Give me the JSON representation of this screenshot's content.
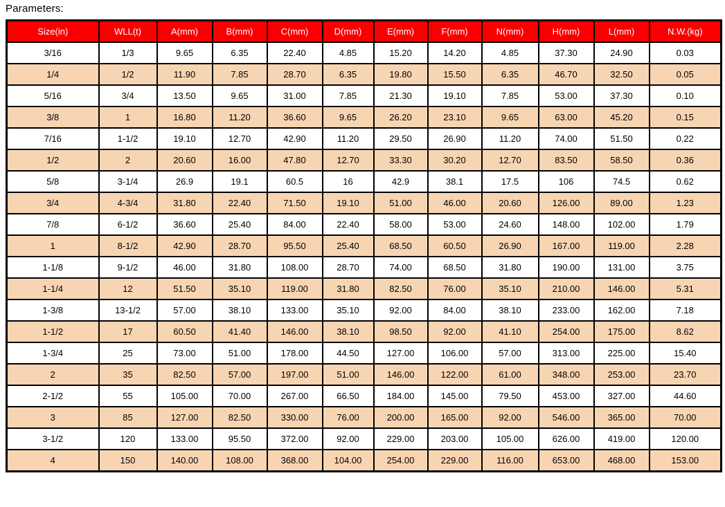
{
  "title": "Parameters:",
  "colors": {
    "header_bg": "#f80000",
    "header_text": "#ffffff",
    "stripe_bg": "#f8d5b2",
    "border": "#000000"
  },
  "table": {
    "columns": [
      "Size(in)",
      "WLL(t)",
      "A(mm)",
      "B(mm)",
      "C(mm)",
      "D(mm)",
      "E(mm)",
      "F(mm)",
      "N(mm)",
      "H(mm)",
      "L(mm)",
      "N.W.(kg)"
    ],
    "rows": [
      [
        "3/16",
        "1/3",
        "9.65",
        "6.35",
        "22.40",
        "4.85",
        "15.20",
        "14.20",
        "4.85",
        "37.30",
        "24.90",
        "0.03"
      ],
      [
        "1/4",
        "1/2",
        "11.90",
        "7.85",
        "28.70",
        "6.35",
        "19.80",
        "15.50",
        "6.35",
        "46.70",
        "32.50",
        "0.05"
      ],
      [
        "5/16",
        "3/4",
        "13.50",
        "9.65",
        "31.00",
        "7.85",
        "21.30",
        "19.10",
        "7.85",
        "53.00",
        "37.30",
        "0.10"
      ],
      [
        "3/8",
        "1",
        "16.80",
        "11.20",
        "36.60",
        "9.65",
        "26.20",
        "23.10",
        "9.65",
        "63.00",
        "45.20",
        "0.15"
      ],
      [
        "7/16",
        "1-1/2",
        "19.10",
        "12.70",
        "42.90",
        "11.20",
        "29.50",
        "26.90",
        "11.20",
        "74.00",
        "51.50",
        "0.22"
      ],
      [
        "1/2",
        "2",
        "20.60",
        "16.00",
        "47.80",
        "12.70",
        "33.30",
        "30.20",
        "12.70",
        "83.50",
        "58.50",
        "0.36"
      ],
      [
        "5/8",
        "3-1/4",
        "26.9",
        "19.1",
        "60.5",
        "16",
        "42.9",
        "38.1",
        "17.5",
        "106",
        "74.5",
        "0.62"
      ],
      [
        "3/4",
        "4-3/4",
        "31.80",
        "22.40",
        "71.50",
        "19.10",
        "51.00",
        "46.00",
        "20.60",
        "126.00",
        "89.00",
        "1.23"
      ],
      [
        "7/8",
        "6-1/2",
        "36.60",
        "25.40",
        "84.00",
        "22.40",
        "58.00",
        "53.00",
        "24.60",
        "148.00",
        "102.00",
        "1.79"
      ],
      [
        "1",
        "8-1/2",
        "42.90",
        "28.70",
        "95.50",
        "25.40",
        "68.50",
        "60.50",
        "26.90",
        "167.00",
        "119.00",
        "2.28"
      ],
      [
        "1-1/8",
        "9-1/2",
        "46.00",
        "31.80",
        "108.00",
        "28.70",
        "74.00",
        "68.50",
        "31.80",
        "190.00",
        "131.00",
        "3.75"
      ],
      [
        "1-1/4",
        "12",
        "51.50",
        "35.10",
        "119.00",
        "31.80",
        "82.50",
        "76.00",
        "35.10",
        "210.00",
        "146.00",
        "5.31"
      ],
      [
        "1-3/8",
        "13-1/2",
        "57.00",
        "38.10",
        "133.00",
        "35.10",
        "92.00",
        "84.00",
        "38.10",
        "233.00",
        "162.00",
        "7.18"
      ],
      [
        "1-1/2",
        "17",
        "60.50",
        "41.40",
        "146.00",
        "38.10",
        "98.50",
        "92.00",
        "41.10",
        "254.00",
        "175.00",
        "8.62"
      ],
      [
        "1-3/4",
        "25",
        "73.00",
        "51.00",
        "178.00",
        "44.50",
        "127.00",
        "106.00",
        "57.00",
        "313.00",
        "225.00",
        "15.40"
      ],
      [
        "2",
        "35",
        "82.50",
        "57.00",
        "197.00",
        "51.00",
        "146.00",
        "122.00",
        "61.00",
        "348.00",
        "253.00",
        "23.70"
      ],
      [
        "2-1/2",
        "55",
        "105.00",
        "70.00",
        "267.00",
        "66.50",
        "184.00",
        "145.00",
        "79.50",
        "453.00",
        "327.00",
        "44.60"
      ],
      [
        "3",
        "85",
        "127.00",
        "82.50",
        "330.00",
        "76.00",
        "200.00",
        "165.00",
        "92.00",
        "546.00",
        "365.00",
        "70.00"
      ],
      [
        "3-1/2",
        "120",
        "133.00",
        "95.50",
        "372.00",
        "92.00",
        "229.00",
        "203.00",
        "105.00",
        "626.00",
        "419.00",
        "120.00"
      ],
      [
        "4",
        "150",
        "140.00",
        "108.00",
        "368.00",
        "104.00",
        "254.00",
        "229.00",
        "116.00",
        "653.00",
        "468.00",
        "153.00"
      ]
    ]
  }
}
